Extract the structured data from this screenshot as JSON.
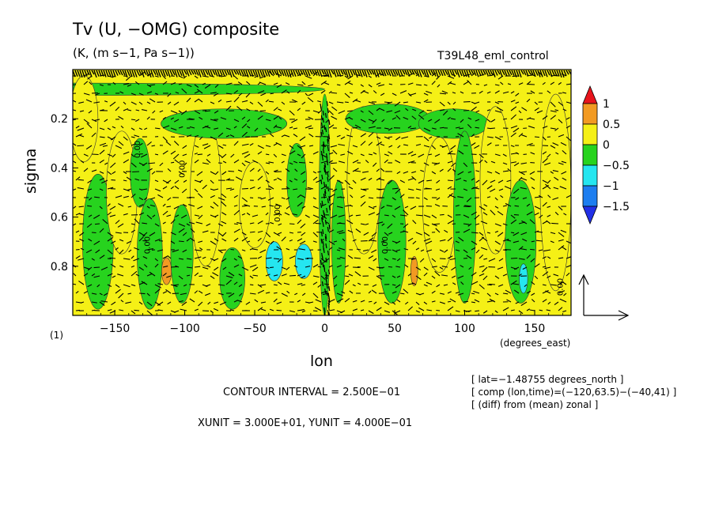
{
  "header": {
    "title": "Tv (U, −OMG) composite",
    "subtitle": "(K, (m s−1, Pa s−1))",
    "run_name": "T39L48_eml_control"
  },
  "axes": {
    "x_label": "lon",
    "x_unit_label": "(degrees_east)",
    "y_label": "sigma",
    "unit_marker": "(1)"
  },
  "info": {
    "lat": "[ lat=−1.48755 degrees_north ]",
    "comp": "[ comp (lon,time)=(−120,63.5)−(−40,41) ]",
    "diff": "[ (diff) from (mean) zonal ]"
  },
  "footer": {
    "contour_interval": "CONTOUR INTERVAL = 2.500E−01",
    "vector_units": "XUNIT = 3.000E+01, YUNIT = 4.000E−01"
  },
  "contour_labels": [
    "0.00",
    "0.00",
    "0.00",
    "0.00",
    "0.00",
    "0.00"
  ],
  "colorbar": {
    "labels": [
      "1",
      "0.5",
      "0",
      "−0.5",
      "−1",
      "−1.5"
    ],
    "colors": [
      "#e8141c",
      "#f29a22",
      "#f5f016",
      "#27d31e",
      "#25e6f0",
      "#1d7ef0",
      "#2230e6"
    ]
  },
  "chart_data": {
    "type": "heatmap",
    "title": "Tv (U, −OMG) composite",
    "xlabel": "lon",
    "ylabel": "sigma",
    "x_ticks": [
      -150,
      -100,
      -50,
      0,
      50,
      100,
      150
    ],
    "x_tick_labels": [
      "−150",
      "−100",
      "−50",
      "0",
      "50",
      "100",
      "150"
    ],
    "y_ticks": [
      0.2,
      0.4,
      0.6,
      0.8
    ],
    "y_tick_labels": [
      "0.2",
      "0.4",
      "0.6",
      "0.8"
    ],
    "xlim": [
      -180,
      176
    ],
    "ylim": [
      1.0,
      0.0
    ],
    "y_inverted": true,
    "contour_interval": 0.25,
    "levels": [
      -1.5,
      -1,
      -0.5,
      0,
      0.5,
      1
    ],
    "patches": [
      {
        "lon": -178,
        "sigma": 0.08,
        "w": 356,
        "h": 0.05,
        "value": -0.25
      },
      {
        "lon": -172,
        "sigma": 0.2,
        "w": 20,
        "h": 0.35,
        "value": 0.25
      },
      {
        "lon": -162,
        "sigma": 0.7,
        "w": 22,
        "h": 0.55,
        "value": -0.25
      },
      {
        "lon": -145,
        "sigma": 0.5,
        "w": 22,
        "h": 0.5,
        "value": 0.25
      },
      {
        "lon": -132,
        "sigma": 0.42,
        "w": 14,
        "h": 0.28,
        "value": -0.25
      },
      {
        "lon": -125,
        "sigma": 0.75,
        "w": 18,
        "h": 0.45,
        "value": -0.25
      },
      {
        "lon": -113,
        "sigma": 0.82,
        "w": 7,
        "h": 0.11,
        "value": 0.75
      },
      {
        "lon": -102,
        "sigma": 0.75,
        "w": 16,
        "h": 0.4,
        "value": -0.25
      },
      {
        "lon": -85,
        "sigma": 0.5,
        "w": 22,
        "h": 0.6,
        "value": 0.25
      },
      {
        "lon": -72,
        "sigma": 0.22,
        "w": 90,
        "h": 0.12,
        "value": -0.25
      },
      {
        "lon": -66,
        "sigma": 0.85,
        "w": 18,
        "h": 0.25,
        "value": -0.25
      },
      {
        "lon": -50,
        "sigma": 0.55,
        "w": 22,
        "h": 0.35,
        "value": 0.25
      },
      {
        "lon": -36,
        "sigma": 0.78,
        "w": 12,
        "h": 0.16,
        "value": -0.75
      },
      {
        "lon": -15,
        "sigma": 0.78,
        "w": 12,
        "h": 0.14,
        "value": -0.75
      },
      {
        "lon": -20,
        "sigma": 0.45,
        "w": 14,
        "h": 0.3,
        "value": -0.25
      },
      {
        "lon": 0,
        "sigma": 0.55,
        "w": 8,
        "h": 0.9,
        "value": -0.25
      },
      {
        "lon": 10,
        "sigma": 0.7,
        "w": 10,
        "h": 0.5,
        "value": -0.25
      },
      {
        "lon": 28,
        "sigma": 0.45,
        "w": 24,
        "h": 0.6,
        "value": 0.25
      },
      {
        "lon": 45,
        "sigma": 0.2,
        "w": 60,
        "h": 0.12,
        "value": -0.25
      },
      {
        "lon": 48,
        "sigma": 0.7,
        "w": 20,
        "h": 0.5,
        "value": -0.25
      },
      {
        "lon": 64,
        "sigma": 0.82,
        "w": 5,
        "h": 0.12,
        "value": 0.75
      },
      {
        "lon": 82,
        "sigma": 0.55,
        "w": 24,
        "h": 0.55,
        "value": 0.25
      },
      {
        "lon": 92,
        "sigma": 0.22,
        "w": 50,
        "h": 0.12,
        "value": -0.25
      },
      {
        "lon": 100,
        "sigma": 0.6,
        "w": 16,
        "h": 0.7,
        "value": -0.25
      },
      {
        "lon": 122,
        "sigma": 0.45,
        "w": 22,
        "h": 0.6,
        "value": 0.25
      },
      {
        "lon": 140,
        "sigma": 0.7,
        "w": 22,
        "h": 0.5,
        "value": -0.25
      },
      {
        "lon": 142,
        "sigma": 0.85,
        "w": 6,
        "h": 0.12,
        "value": -0.75
      },
      {
        "lon": 165,
        "sigma": 0.5,
        "w": 22,
        "h": 0.8,
        "value": 0.25
      }
    ]
  }
}
